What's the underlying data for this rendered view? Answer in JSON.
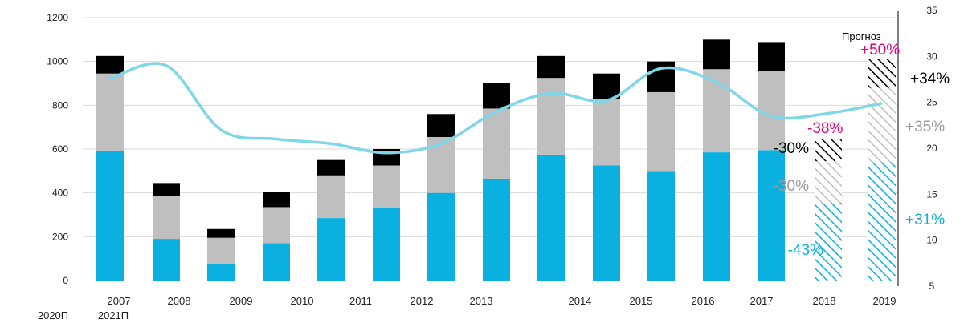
{
  "chart_data": {
    "type": "bar",
    "categories": [
      "2007",
      "2008",
      "2009",
      "2010",
      "2011",
      "2012",
      "2013",
      "2014",
      "2015",
      "2016",
      "2017",
      "2018",
      "2019",
      "2020П",
      "2021П"
    ],
    "x_labels_row1": [
      "2007",
      "2008",
      "2009",
      "2010",
      "2011",
      "2012",
      "2013",
      "",
      "2014",
      "2015",
      "2016",
      "2017",
      "2018",
      "2019"
    ],
    "x_labels_row2": [
      "2020П",
      "2021П"
    ],
    "series": [
      {
        "values": [
          590,
          190,
          75,
          170,
          285,
          330,
          400,
          465,
          575,
          525,
          500,
          585,
          595,
          355,
          540
        ],
        "color": "#0ab1e0"
      },
      {
        "values": [
          355,
          195,
          120,
          165,
          195,
          195,
          255,
          320,
          350,
          305,
          360,
          380,
          360,
          190,
          340
        ],
        "color": "#bfbfbf"
      },
      {
        "values": [
          80,
          60,
          40,
          70,
          70,
          75,
          105,
          115,
          100,
          115,
          140,
          135,
          130,
          100,
          130
        ],
        "color": "#000000"
      }
    ],
    "forecast_from_index": 13,
    "line_series": {
      "axis": "right",
      "color": "#7fd6e6",
      "values": [
        27.6,
        29,
        22,
        21,
        20.5,
        19.5,
        20.5,
        24,
        26,
        25.2,
        28.7,
        27.2,
        23.5,
        23.8,
        24.9
      ]
    },
    "ylim_left": [
      0,
      1200
    ],
    "yticks_left": [
      "0",
      "200",
      "400",
      "600",
      "800",
      "1000",
      "1200"
    ],
    "ylim_right": [
      5,
      35
    ],
    "yticks_right": [
      "5",
      "10",
      "15",
      "20",
      "25",
      "30",
      "35"
    ],
    "grid": true,
    "annotations": {
      "forecast_label": "Прогноз",
      "a1_black": "-30%",
      "a1_pink": "-38%",
      "a1_gray": "-30%",
      "a1_blue": "-43%",
      "a2_pink": "+50%",
      "a2_black": "+34%",
      "a2_gray": "+35%",
      "a2_blue": "+31%"
    },
    "colors": {
      "blue": "#0ab1e0",
      "gray": "#bfbfbf",
      "black": "#000000",
      "pink": "#e6007e",
      "gray_text": "#9d9d9d",
      "line": "#7fd6e6",
      "grid": "#d9d9d9"
    }
  }
}
